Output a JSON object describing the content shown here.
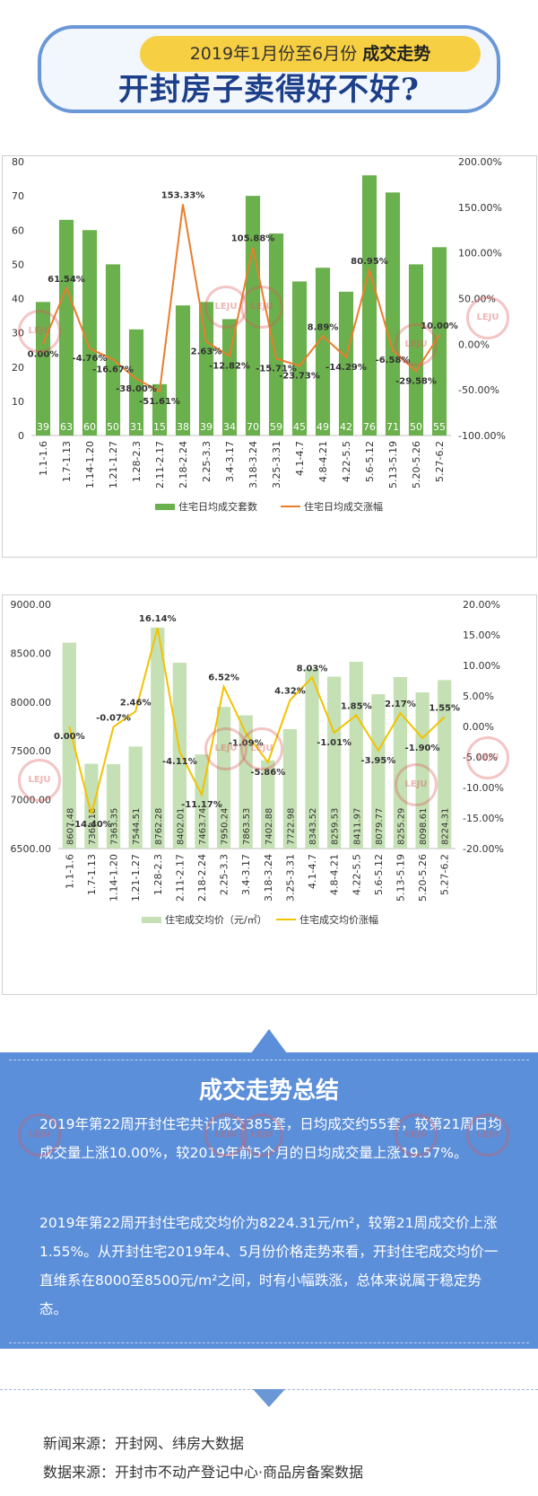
{
  "header": {
    "subtitle_prefix": "2019年1月份至6月份",
    "subtitle_bold": "成交走势",
    "title": "开封房子卖得好不好?"
  },
  "colors": {
    "bar1": "#6ab04c",
    "line1": "#ea7d2c",
    "bar2": "#c5e0b4",
    "line2": "#f2c200",
    "summary_bg": "#5c8fd9",
    "title_blue": "#1d3f8a"
  },
  "chart_data": [
    {
      "type": "bar",
      "categories": [
        "1.1-1.6",
        "1.7-1.13",
        "1.14-1.20",
        "1.21-1.27",
        "1.28-2.3",
        "2.11-2.17",
        "2.18-2.24",
        "2.25-3.3",
        "3.4-3.17",
        "3.18-3.24",
        "3.25-3.31",
        "4.1-4.7",
        "4.8-4.21",
        "4.22-5.5",
        "5.6-5.12",
        "5.13-5.19",
        "5.20-5.26",
        "5.27-6.2"
      ],
      "series": [
        {
          "name": "住宅日均成交套数",
          "type": "bar",
          "axis": "left",
          "values": [
            39,
            63,
            60,
            50,
            31,
            15,
            38,
            39,
            34,
            70,
            59,
            45,
            49,
            42,
            76,
            71,
            50,
            55
          ]
        },
        {
          "name": "住宅日均成交涨幅",
          "type": "line",
          "axis": "right",
          "values": [
            0.0,
            61.54,
            -4.76,
            -16.67,
            -38.0,
            -51.61,
            153.33,
            2.63,
            -12.82,
            105.88,
            -15.71,
            -23.73,
            8.89,
            -14.29,
            80.95,
            -6.58,
            -29.58,
            10.0
          ],
          "labels": [
            "0.00%",
            "61.54%",
            "-4.76%",
            "-16.67%",
            "-38.00%",
            "-51.61%",
            "153.33%",
            "2.63%",
            "-12.82%",
            "105.88%",
            "-15.71%",
            "-23.73%",
            "8.89%",
            "-14.29%",
            "80.95%",
            "-6.58%",
            "-29.58%",
            "10.00%"
          ]
        }
      ],
      "ylim": [
        0,
        80
      ],
      "y_ticks": [
        "0",
        "10",
        "20",
        "30",
        "40",
        "50",
        "60",
        "70",
        "80"
      ],
      "y2lim": [
        -100,
        200
      ],
      "y2_ticks": [
        "-100.00%",
        "-50.00%",
        "0.00%",
        "50.00%",
        "100.00%",
        "150.00%",
        "200.00%"
      ],
      "legend": "bottom"
    },
    {
      "type": "bar",
      "categories": [
        "1.1-1.6",
        "1.7-1.13",
        "1.14-1.20",
        "1.21-1.27",
        "1.28-2.3",
        "2.11-2.17",
        "2.18-2.24",
        "2.25-3.3",
        "3.4-3.17",
        "3.18-3.24",
        "3.25-3.31",
        "4.1-4.7",
        "4.8-4.21",
        "4.22-5.5",
        "5.6-5.12",
        "5.13-5.19",
        "5.20-5.26",
        "5.27-6.2"
      ],
      "series": [
        {
          "name": "住宅成交均价（元/㎡）",
          "type": "bar",
          "axis": "left",
          "values": [
            8607.48,
            7368.18,
            7363.35,
            7544.51,
            8762.28,
            8402.01,
            7463.74,
            7950.24,
            7863.53,
            7402.88,
            7722.98,
            8343.52,
            8259.53,
            8411.97,
            8079.77,
            8255.29,
            8098.61,
            8224.31
          ],
          "labels": [
            "8607.48",
            "7368.18",
            "7363.35",
            "7544.51",
            "8762.28",
            "8402.01",
            "7463.74",
            "7950.24",
            "7863.53",
            "7402.88",
            "7722.98",
            "8343.52",
            "8259.53",
            "8411.97",
            "8079.77",
            "8255.29",
            "8098.61",
            "8224.31"
          ]
        },
        {
          "name": "住宅成交均价涨幅",
          "type": "line",
          "axis": "right",
          "values": [
            0.0,
            -14.4,
            -0.07,
            2.46,
            16.14,
            -4.11,
            -11.17,
            6.52,
            -1.09,
            -5.86,
            4.32,
            8.03,
            -1.01,
            1.85,
            -3.95,
            2.17,
            -1.9,
            1.55
          ],
          "labels": [
            "0.00%",
            "-14.40%",
            "-0.07%",
            "2.46%",
            "16.14%",
            "-4.11%",
            "-11.17%",
            "6.52%",
            "-1.09%",
            "-5.86%",
            "4.32%",
            "8.03%",
            "-1.01%",
            "1.85%",
            "-3.95%",
            "2.17%",
            "-1.90%",
            "1.55%"
          ]
        }
      ],
      "ylim": [
        6500,
        9000
      ],
      "y_ticks": [
        "6500.00",
        "7000.00",
        "7500.00",
        "8000.00",
        "8500.00",
        "9000.00"
      ],
      "y2lim": [
        -20,
        20
      ],
      "y2_ticks": [
        "-20.00%",
        "-15.00%",
        "-10.00%",
        "-5.00%",
        "0.00%",
        "5.00%",
        "10.00%",
        "15.00%",
        "20.00%"
      ],
      "legend": "bottom"
    }
  ],
  "watermark": {
    "brand": "LEJU",
    "cn": "乐居"
  },
  "summary": {
    "title": "成交走势总结",
    "p1": "2019年第22周开封住宅共计成交385套，日均成交约55套，较第21周日均成交量上涨10.00%，较2019年前5个月的日均成交量上涨19.57%。",
    "p2": "2019年第22周开封住宅成交均价为8224.31元/m²，较第21周成交价上涨1.55%。从开封住宅2019年4、5月份价格走势来看，开封住宅成交均价一直维系在8000至8500元/m²之间，时有小幅跌涨，总体来说属于稳定势态。"
  },
  "sources": {
    "news": "新闻来源：开封网、纬房大数据",
    "data": "数据来源：开封市不动产登记中心·商品房备案数据"
  }
}
